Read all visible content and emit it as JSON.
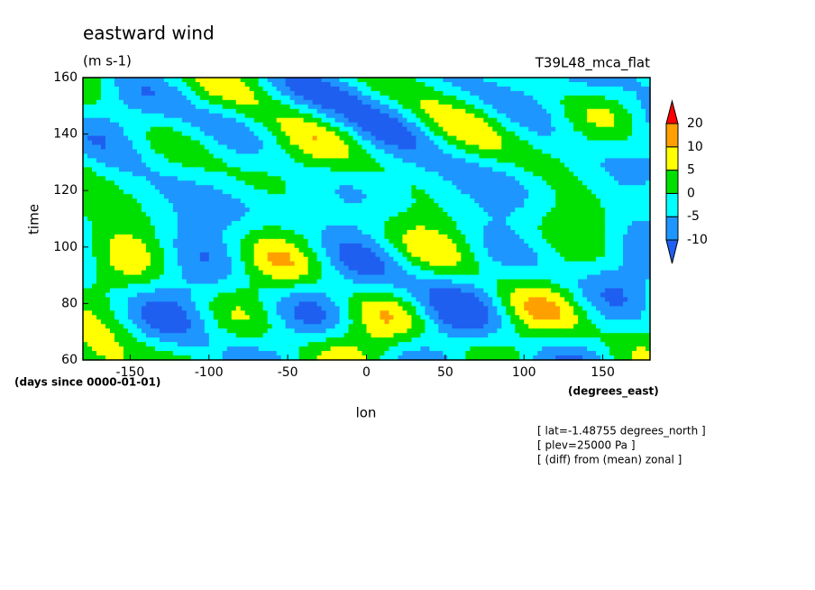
{
  "chart_data": {
    "type": "contour",
    "title": "eastward wind",
    "subtitle": "(m s-1)",
    "dataset": "T39L48_mca_flat",
    "xlabel": "lon",
    "ylabel": "time",
    "x_units": "(degrees_east)",
    "y_units": "(days since 0000-01-01)",
    "xlim": [
      -180,
      180
    ],
    "xticks": [
      -150,
      -100,
      -50,
      0,
      50,
      100,
      150
    ],
    "ylim": [
      60,
      160
    ],
    "yticks": [
      60,
      80,
      100,
      120,
      140,
      160
    ],
    "colorbar": {
      "levels": [
        -10,
        -5,
        0,
        5,
        10,
        20
      ],
      "colors": [
        "#1e5ff0",
        "#1e96ff",
        "#00ffff",
        "#00e000",
        "#ffff00",
        "#ffa000",
        "#ff0000"
      ]
    },
    "notes": [
      "[ lat=-1.48755 degrees_north ]",
      "[ plev=25000 Pa ]",
      "[ (diff) from (mean) zonal ]"
    ]
  }
}
